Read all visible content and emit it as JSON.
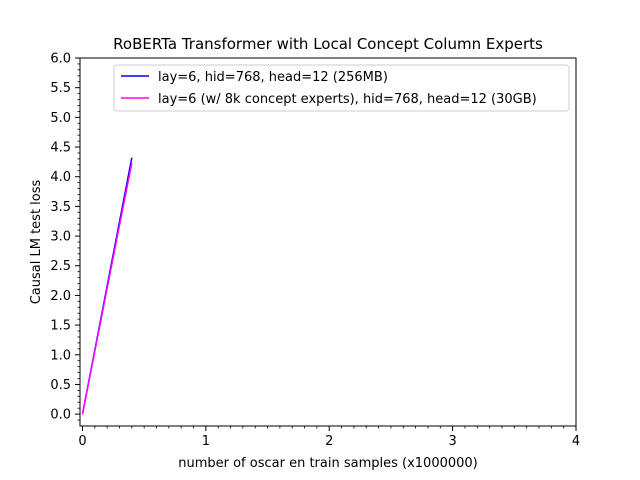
{
  "chart_data": {
    "type": "line",
    "title": "RoBERTa Transformer with Local Concept Column Experts",
    "xlabel": "number of oscar en train samples (x1000000)",
    "ylabel": "Causal LM test loss",
    "xlim": [
      -0.02,
      4.0
    ],
    "ylim": [
      -0.2,
      6.0
    ],
    "xticks": [
      0,
      1,
      2,
      3,
      4
    ],
    "xtick_labels": [
      "0",
      "1",
      "2",
      "3",
      "4"
    ],
    "yticks": [
      0.0,
      0.5,
      1.0,
      1.5,
      2.0,
      2.5,
      3.0,
      3.5,
      4.0,
      4.5,
      5.0,
      5.5,
      6.0
    ],
    "ytick_labels": [
      "0.0",
      "0.5",
      "1.0",
      "1.5",
      "2.0",
      "2.5",
      "3.0",
      "3.5",
      "4.0",
      "4.5",
      "5.0",
      "5.5",
      "6.0"
    ],
    "grid": false,
    "legend_position": "top-right",
    "series": [
      {
        "name": "lay=6, hid=768, head=12 (256MB)",
        "color": "#0000ff",
        "x": [
          0.0,
          0.1,
          0.2,
          0.3,
          0.4
        ],
        "y": [
          0.0,
          1.08,
          2.16,
          3.24,
          4.32
        ]
      },
      {
        "name": "lay=6 (w/ 8k concept experts), hid=768, head=12 (30GB)",
        "color": "#ff00ff",
        "x": [
          0.0,
          0.1,
          0.2,
          0.3,
          0.4
        ],
        "y": [
          0.0,
          1.06,
          2.12,
          3.18,
          4.23
        ]
      }
    ]
  }
}
